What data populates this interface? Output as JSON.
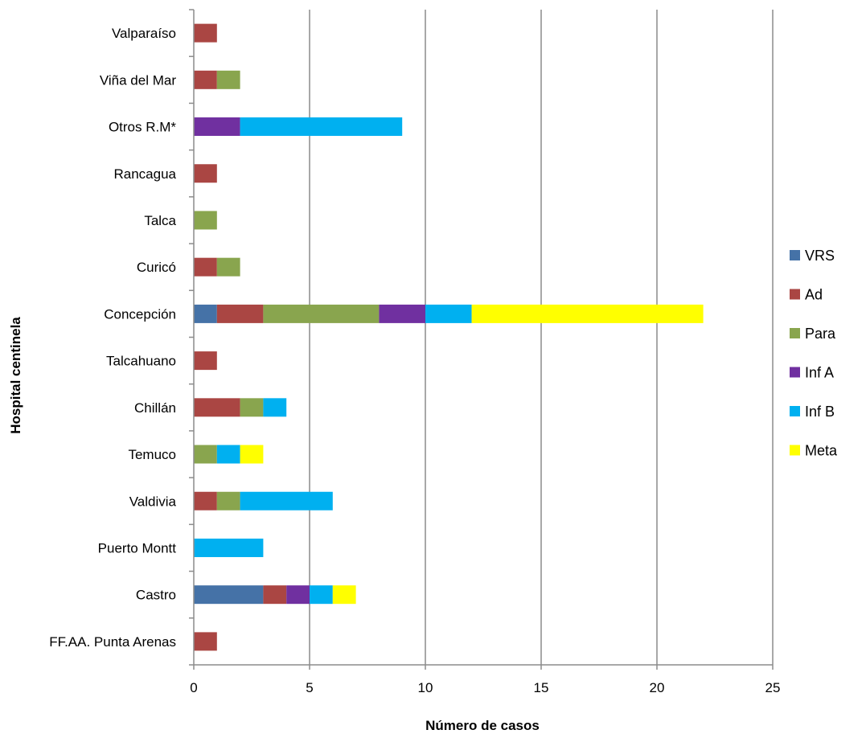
{
  "chart_data": {
    "type": "bar",
    "orientation": "horizontal",
    "stacked": true,
    "categories": [
      "Valparaíso",
      "Viña del Mar",
      "Otros R.M*",
      "Rancagua",
      "Talca",
      "Curicó",
      "Concepción",
      "Talcahuano",
      "Chillán",
      "Temuco",
      "Valdivia",
      "Puerto Montt",
      "Castro",
      "FF.AA. Punta Arenas"
    ],
    "series": [
      {
        "name": "VRS",
        "color": "#4572A7",
        "values": [
          0,
          0,
          0,
          0,
          0,
          0,
          1,
          0,
          0,
          0,
          0,
          0,
          3,
          0
        ]
      },
      {
        "name": "Ad",
        "color": "#AA4643",
        "values": [
          1,
          1,
          0,
          1,
          0,
          1,
          2,
          1,
          2,
          0,
          1,
          0,
          1,
          1
        ]
      },
      {
        "name": "Para",
        "color": "#89A54E",
        "values": [
          0,
          1,
          0,
          0,
          1,
          1,
          5,
          0,
          1,
          1,
          1,
          0,
          0,
          0
        ]
      },
      {
        "name": "Inf A",
        "color": "#7030A0",
        "values": [
          0,
          0,
          2,
          0,
          0,
          0,
          2,
          0,
          0,
          0,
          0,
          0,
          1,
          0
        ]
      },
      {
        "name": "Inf B",
        "color": "#00B0F0",
        "values": [
          0,
          0,
          7,
          0,
          0,
          0,
          2,
          0,
          1,
          1,
          4,
          3,
          1,
          0
        ]
      },
      {
        "name": "Meta",
        "color": "#FFFF00",
        "values": [
          0,
          0,
          0,
          0,
          0,
          0,
          10,
          0,
          0,
          1,
          0,
          0,
          1,
          0
        ]
      }
    ],
    "xlabel": "Número de casos",
    "ylabel": "Hospital  centinela",
    "xlim": [
      0,
      25
    ],
    "xticks": [
      0,
      5,
      10,
      15,
      20,
      25
    ],
    "grid": "vertical",
    "legend_position": "right"
  }
}
